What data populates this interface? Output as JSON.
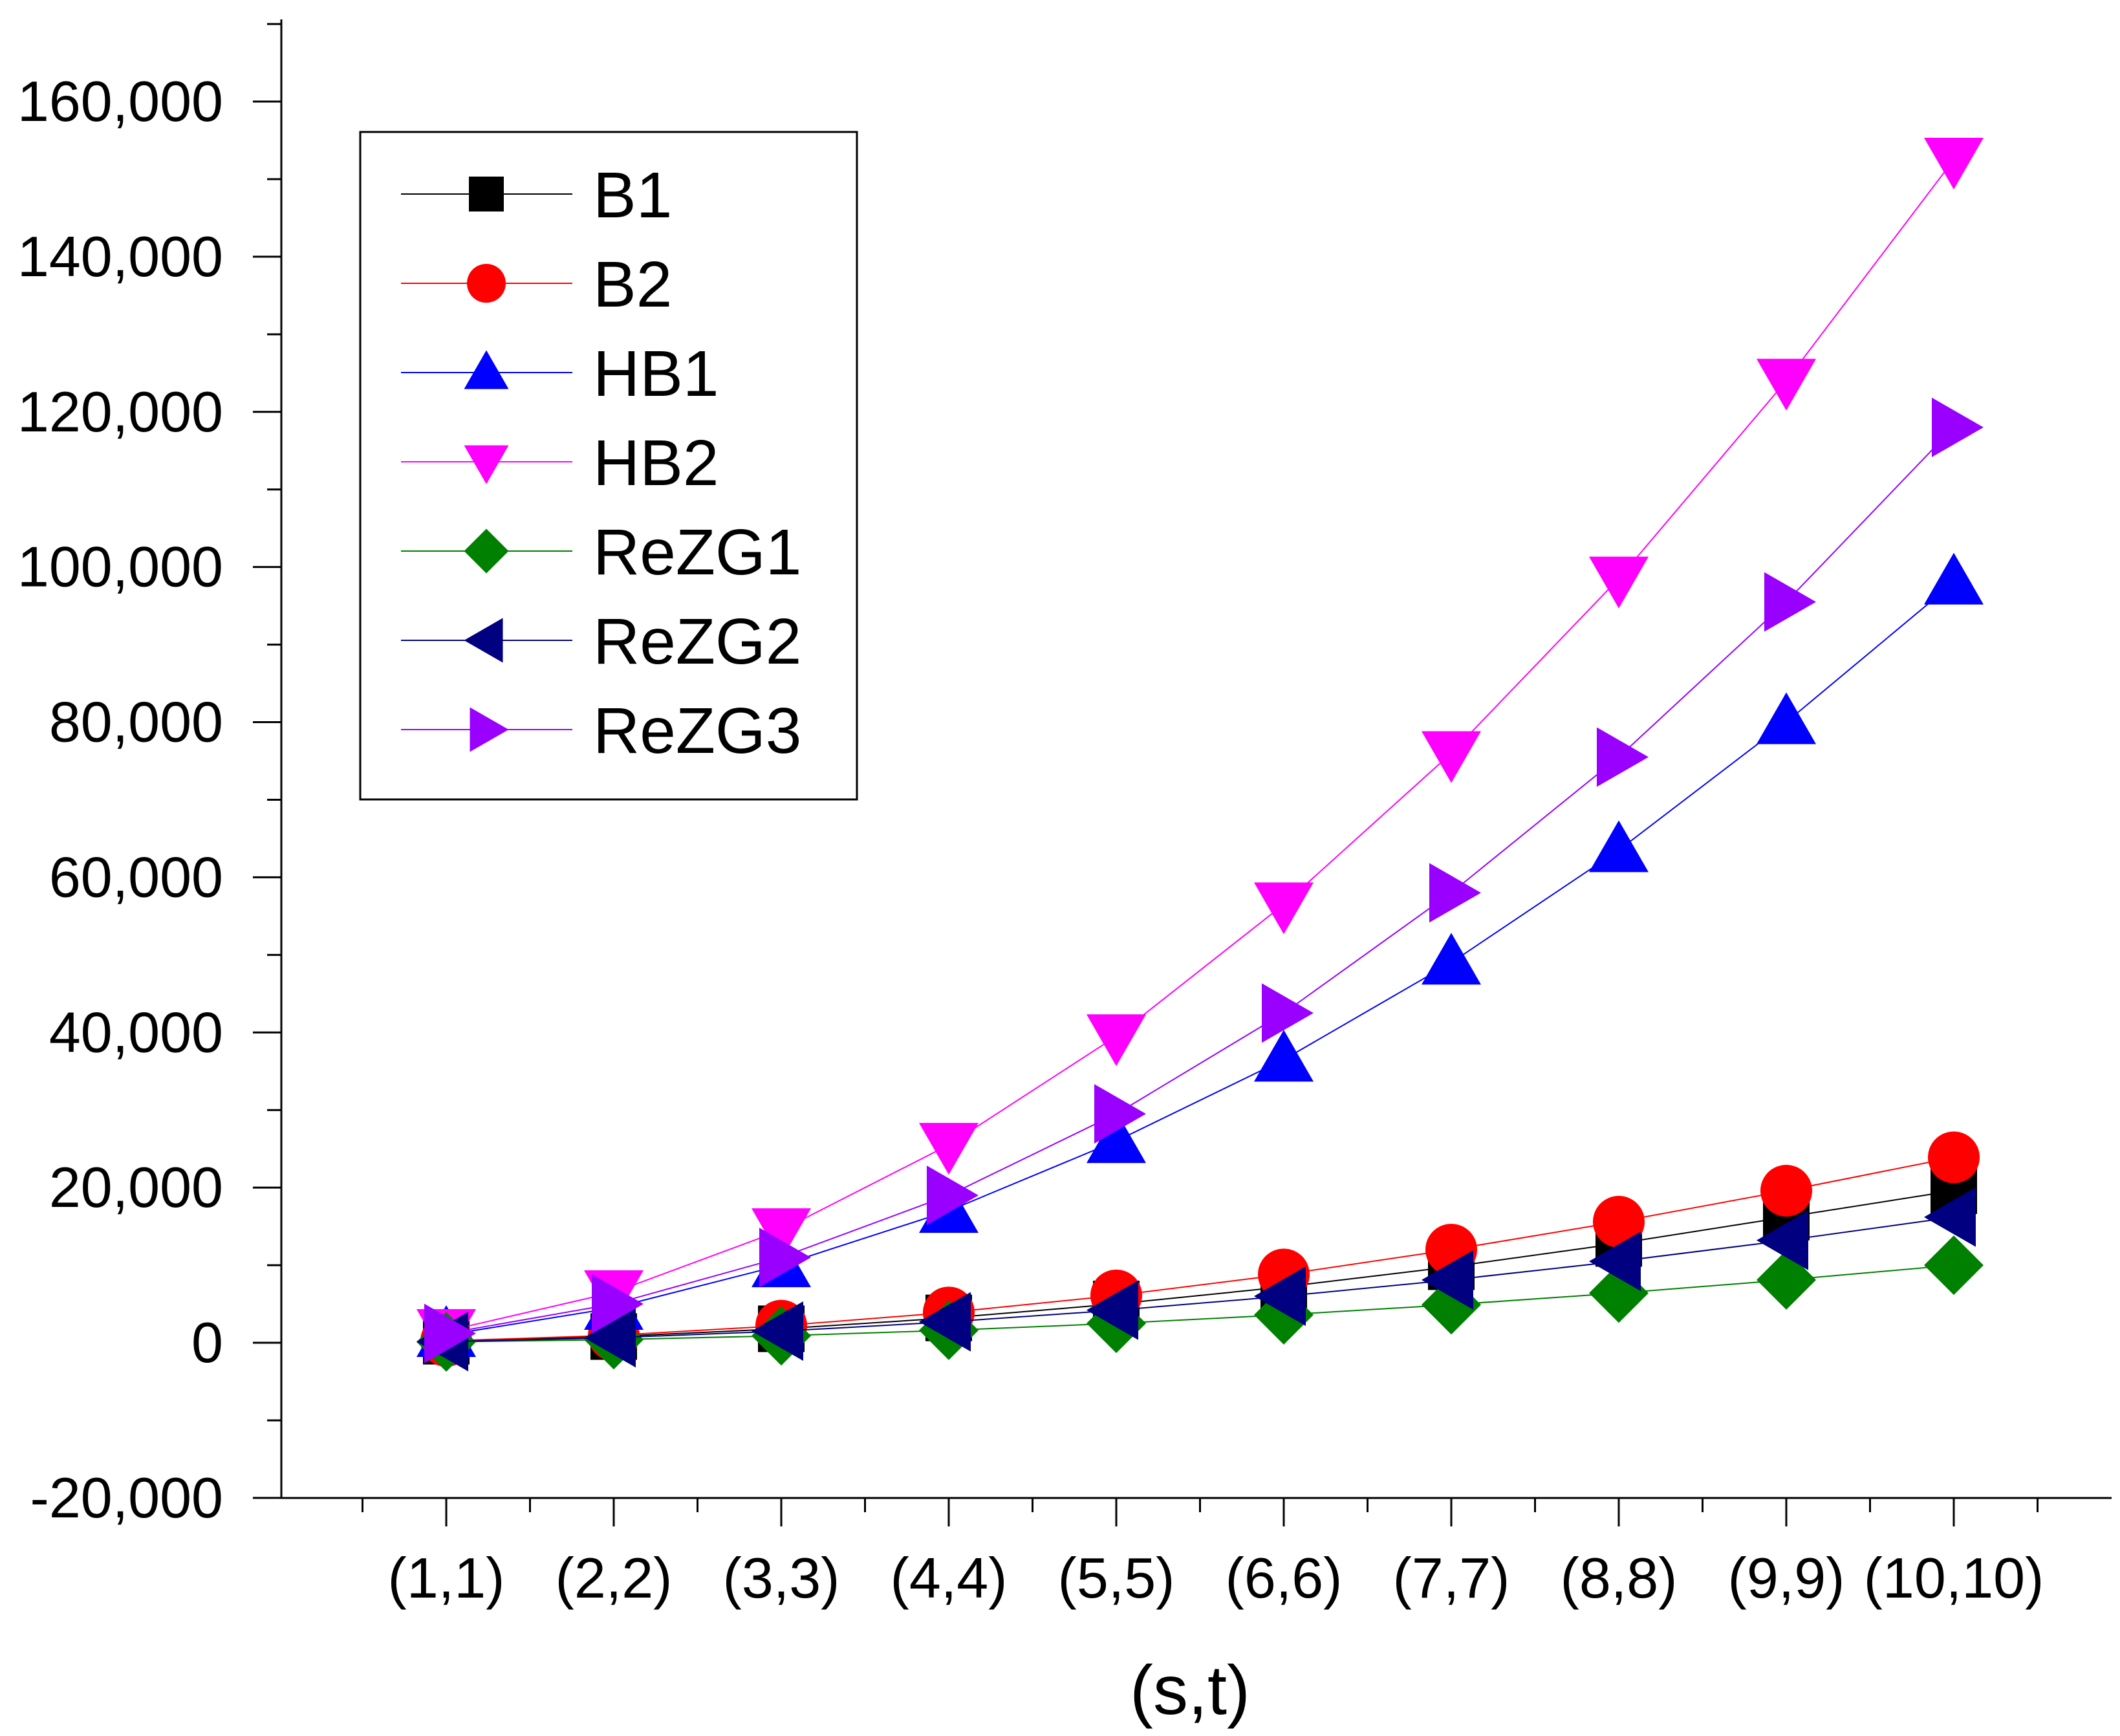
{
  "chart_data": {
    "type": "line",
    "title": "",
    "xlabel": "(s,t)",
    "ylabel": "",
    "categories": [
      "(1,1)",
      "(2,2)",
      "(3,3)",
      "(4,4)",
      "(5,5)",
      "(6,6)",
      "(7,7)",
      "(8,8)",
      "(9,9)",
      "(10,10)"
    ],
    "ylim": [
      -20000,
      170000
    ],
    "yticks": [
      -20000,
      0,
      20000,
      40000,
      60000,
      80000,
      100000,
      120000,
      140000,
      160000
    ],
    "ytick_labels": [
      "-20,000",
      "0",
      "20,000",
      "40,000",
      "60,000",
      "80,000",
      "100,000",
      "120,000",
      "140,000",
      "160,000"
    ],
    "legend_position": "top-left",
    "grid": false,
    "series": [
      {
        "name": "B1",
        "color": "#000000",
        "marker": "square",
        "values": [
          200,
          800,
          1800,
          3200,
          5000,
          7200,
          9800,
          12800,
          16200,
          19600
        ]
      },
      {
        "name": "B2",
        "color": "#ff0000",
        "marker": "circle",
        "values": [
          240,
          960,
          2200,
          3900,
          6100,
          8800,
          12000,
          15600,
          19600,
          23900
        ]
      },
      {
        "name": "HB1",
        "color": "#0000ff",
        "marker": "triangle-up",
        "values": [
          1000,
          4500,
          10000,
          17000,
          26000,
          36500,
          49000,
          63500,
          80000,
          98000
        ]
      },
      {
        "name": "HB2",
        "color": "#ff00ff",
        "marker": "triangle-down",
        "values": [
          1500,
          6500,
          14500,
          25500,
          39500,
          56500,
          76000,
          98500,
          124000,
          152500
        ]
      },
      {
        "name": "ReZG1",
        "color": "#008000",
        "marker": "diamond",
        "values": [
          100,
          400,
          900,
          1600,
          2500,
          3600,
          4900,
          6400,
          8100,
          10000
        ]
      },
      {
        "name": "ReZG2",
        "color": "#000080",
        "marker": "triangle-left",
        "values": [
          150,
          650,
          1500,
          2700,
          4200,
          6000,
          8100,
          10500,
          13200,
          16200
        ]
      },
      {
        "name": "ReZG3",
        "color": "#9900ff",
        "marker": "triangle-right",
        "values": [
          1200,
          5000,
          11000,
          19000,
          29500,
          42500,
          58000,
          75500,
          95500,
          118000
        ]
      }
    ]
  }
}
